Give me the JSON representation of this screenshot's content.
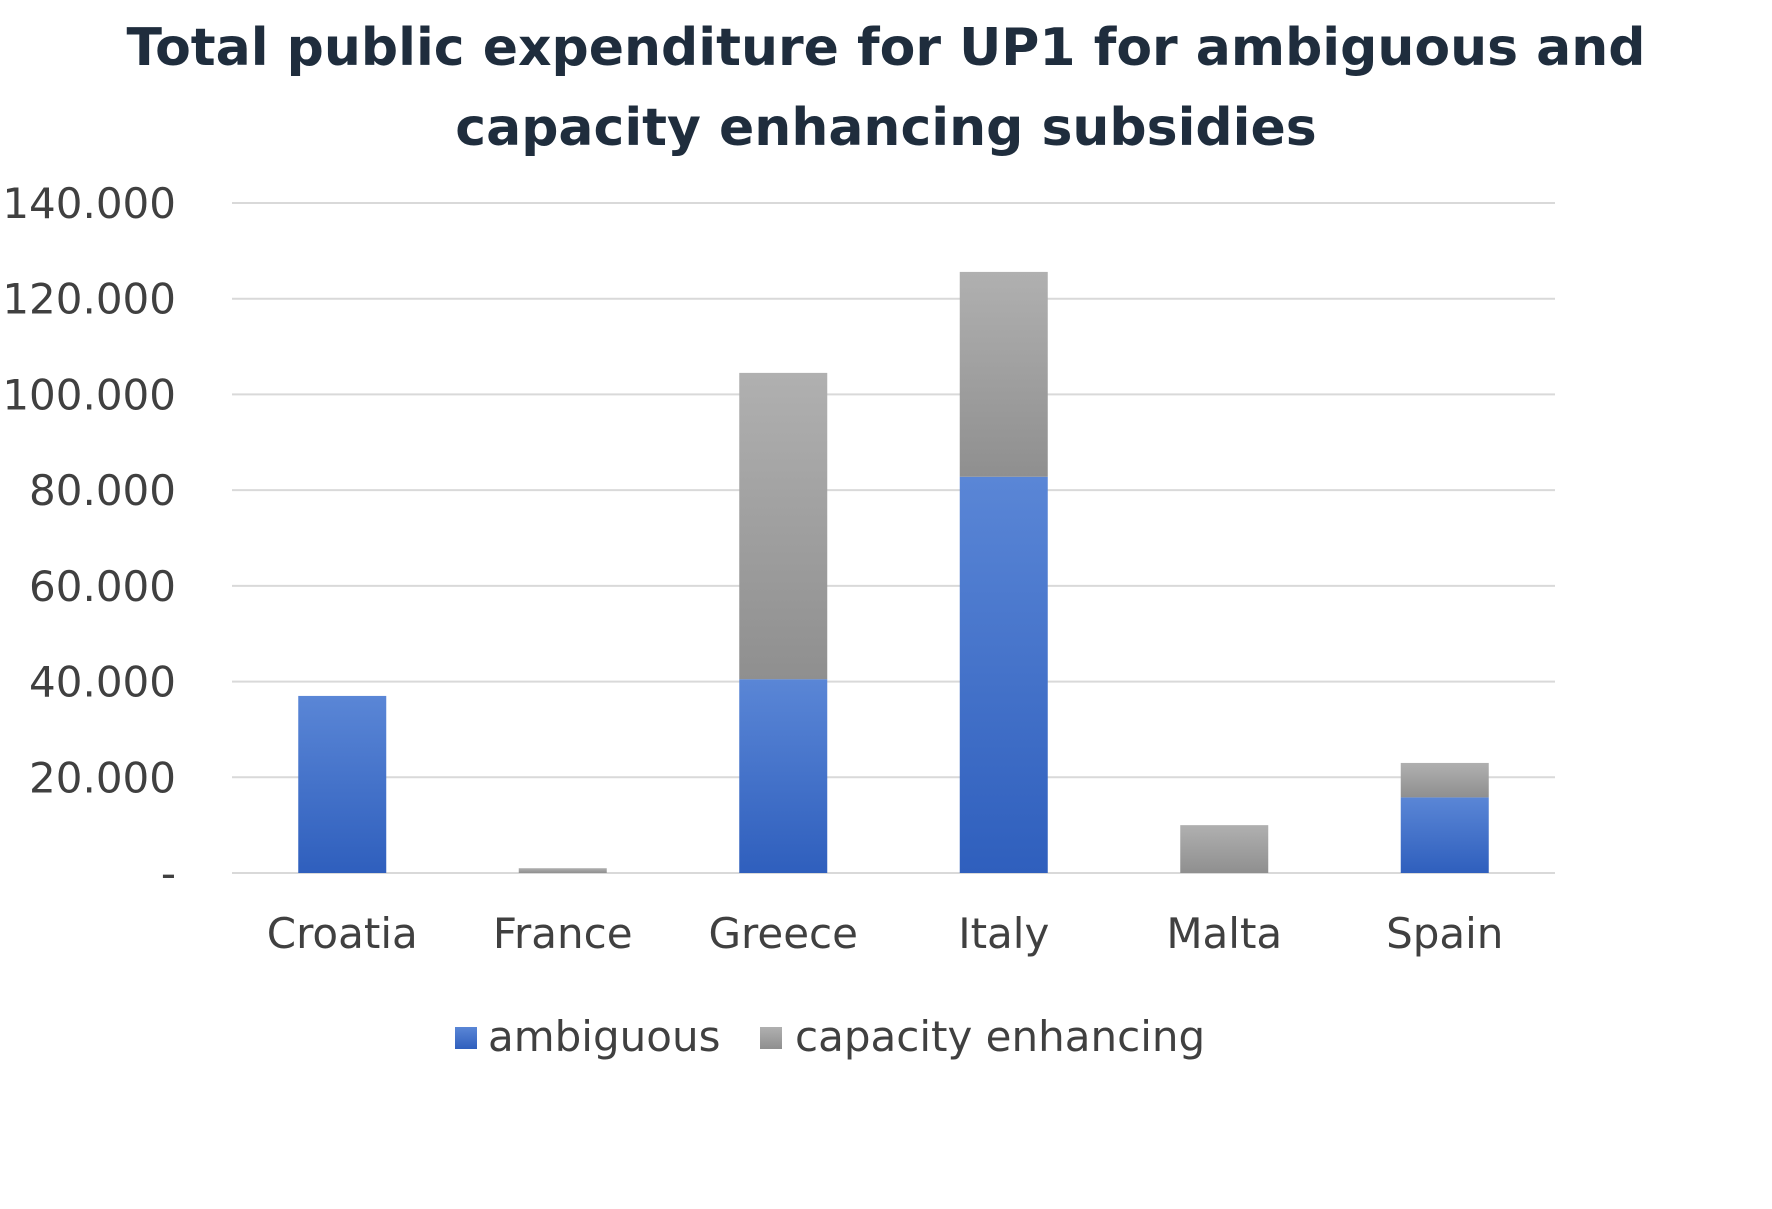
{
  "chart_data": {
    "type": "bar",
    "stacked": true,
    "title_lines": [
      "Total public expenditure for UP1 for ambiguous and",
      "capacity enhancing subsidies"
    ],
    "title": "Total public expenditure for UP1 for ambiguous and capacity enhancing subsidies",
    "categories": [
      "Croatia",
      "France",
      "Greece",
      "Italy",
      "Malta",
      "Spain"
    ],
    "series": [
      {
        "name": "ambiguous",
        "color": "#3a6cc8",
        "values": [
          37000,
          0,
          40500,
          82800,
          0,
          15800
        ]
      },
      {
        "name": "capacity enhancing",
        "color": "#a6a6a6",
        "values": [
          0,
          1000,
          64000,
          42800,
          10000,
          7200
        ]
      }
    ],
    "ylim": [
      0,
      140000
    ],
    "yticks": [
      0,
      20000,
      40000,
      60000,
      80000,
      100000,
      120000,
      140000
    ],
    "ytick_labels": [
      "-",
      "20.000",
      "40.000",
      "60.000",
      "80.000",
      "100.000",
      "120.000",
      "140.000"
    ],
    "xlabel": "",
    "ylabel": "",
    "grid": true,
    "legend_position": "bottom"
  }
}
